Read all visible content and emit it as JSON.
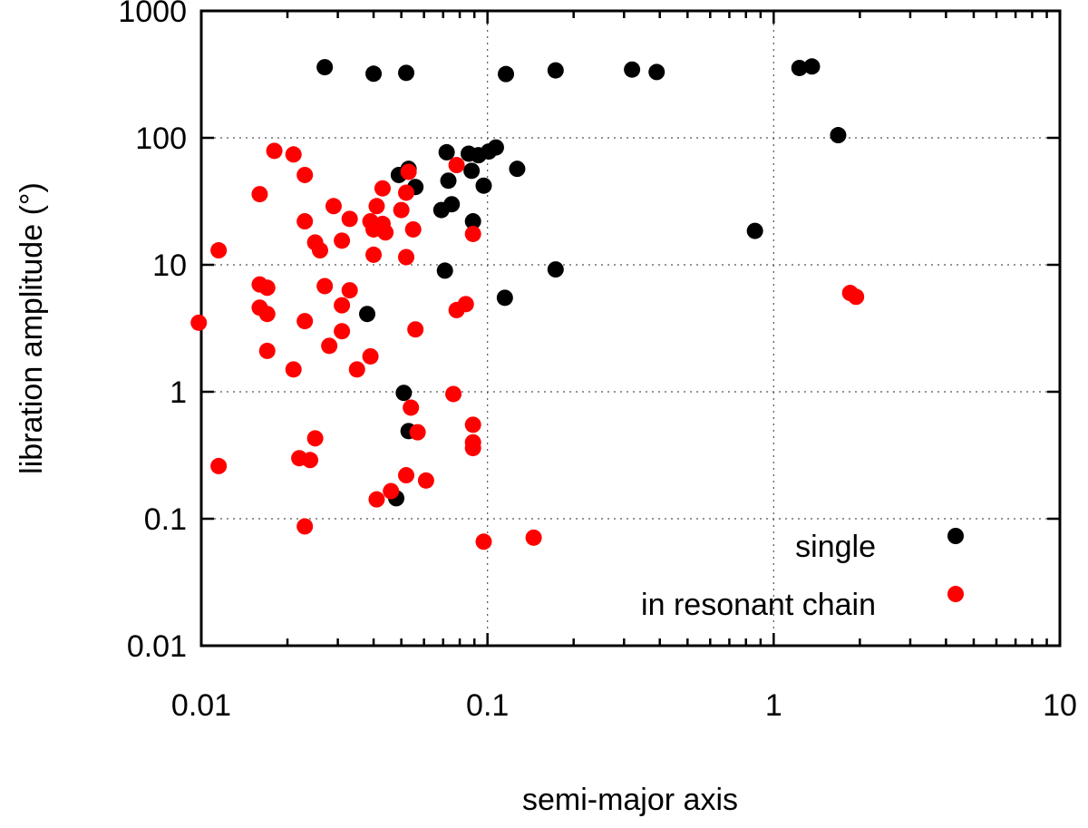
{
  "chart_data": {
    "type": "scatter",
    "title": "",
    "xlabel": "semi-major axis",
    "ylabel": "libration amplitude (°)",
    "xscale": "log",
    "yscale": "log",
    "xlim": [
      0.01,
      10
    ],
    "ylim": [
      0.01,
      1000
    ],
    "xticks": [
      {
        "value": 0.01,
        "label": "0.01"
      },
      {
        "value": 0.1,
        "label": "0.1"
      },
      {
        "value": 1,
        "label": "1"
      },
      {
        "value": 10,
        "label": "10"
      }
    ],
    "yticks": [
      {
        "value": 0.01,
        "label": "0.01"
      },
      {
        "value": 0.1,
        "label": "0.1"
      },
      {
        "value": 1,
        "label": "1"
      },
      {
        "value": 10,
        "label": "10"
      },
      {
        "value": 100,
        "label": "100"
      },
      {
        "value": 1000,
        "label": "1000"
      }
    ],
    "grid": true,
    "legend_position": "bottom-right",
    "series": [
      {
        "name": "single",
        "color": "#000000",
        "points": [
          [
            0.027,
            360
          ],
          [
            0.04,
            320
          ],
          [
            0.052,
            325
          ],
          [
            0.116,
            318
          ],
          [
            0.173,
            340
          ],
          [
            0.32,
            345
          ],
          [
            0.39,
            330
          ],
          [
            1.23,
            355
          ],
          [
            1.36,
            365
          ],
          [
            1.68,
            105
          ],
          [
            0.072,
            77
          ],
          [
            0.086,
            75
          ],
          [
            0.093,
            73
          ],
          [
            0.101,
            78
          ],
          [
            0.107,
            84
          ],
          [
            0.053,
            57
          ],
          [
            0.049,
            51
          ],
          [
            0.127,
            57
          ],
          [
            0.088,
            55
          ],
          [
            0.073,
            46
          ],
          [
            0.056,
            41
          ],
          [
            0.097,
            42
          ],
          [
            0.075,
            30
          ],
          [
            0.069,
            27
          ],
          [
            0.089,
            22
          ],
          [
            0.86,
            18.5
          ],
          [
            0.071,
            9
          ],
          [
            0.173,
            9.2
          ],
          [
            0.115,
            5.5
          ],
          [
            0.038,
            4.1
          ],
          [
            0.051,
            0.98
          ],
          [
            0.053,
            0.49
          ],
          [
            0.048,
            0.145
          ]
        ]
      },
      {
        "name": "in resonant chain",
        "color": "#ff0000",
        "points": [
          [
            0.018,
            79
          ],
          [
            0.021,
            74
          ],
          [
            0.023,
            51
          ],
          [
            0.016,
            36
          ],
          [
            0.0115,
            13
          ],
          [
            0.0098,
            3.5
          ],
          [
            0.016,
            7
          ],
          [
            0.017,
            6.6
          ],
          [
            0.016,
            4.6
          ],
          [
            0.017,
            4.1
          ],
          [
            0.017,
            2.1
          ],
          [
            0.021,
            1.5
          ],
          [
            0.0115,
            0.26
          ],
          [
            0.023,
            22
          ],
          [
            0.025,
            15
          ],
          [
            0.026,
            13
          ],
          [
            0.029,
            29
          ],
          [
            0.031,
            15.5
          ],
          [
            0.033,
            23
          ],
          [
            0.027,
            6.8
          ],
          [
            0.033,
            6.3
          ],
          [
            0.031,
            4.8
          ],
          [
            0.023,
            3.6
          ],
          [
            0.031,
            3
          ],
          [
            0.028,
            2.3
          ],
          [
            0.035,
            1.5
          ],
          [
            0.039,
            1.9
          ],
          [
            0.025,
            0.43
          ],
          [
            0.022,
            0.3
          ],
          [
            0.024,
            0.29
          ],
          [
            0.023,
            0.087
          ],
          [
            0.039,
            22
          ],
          [
            0.04,
            19
          ],
          [
            0.041,
            29
          ],
          [
            0.043,
            21
          ],
          [
            0.044,
            18
          ],
          [
            0.043,
            40
          ],
          [
            0.05,
            27
          ],
          [
            0.052,
            37
          ],
          [
            0.053,
            54
          ],
          [
            0.055,
            19
          ],
          [
            0.04,
            12
          ],
          [
            0.052,
            11.5
          ],
          [
            0.056,
            3.1
          ],
          [
            0.054,
            0.75
          ],
          [
            0.057,
            0.48
          ],
          [
            0.046,
            0.165
          ],
          [
            0.041,
            0.142
          ],
          [
            0.052,
            0.22
          ],
          [
            0.061,
            0.2
          ],
          [
            0.078,
            61
          ],
          [
            0.089,
            17.5
          ],
          [
            0.084,
            4.9
          ],
          [
            0.078,
            4.4
          ],
          [
            0.076,
            0.96
          ],
          [
            0.089,
            0.55
          ],
          [
            0.089,
            0.4
          ],
          [
            0.089,
            0.36
          ],
          [
            0.097,
            0.066
          ],
          [
            0.145,
            0.071
          ],
          [
            1.85,
            6
          ],
          [
            1.94,
            5.6
          ]
        ]
      }
    ]
  }
}
